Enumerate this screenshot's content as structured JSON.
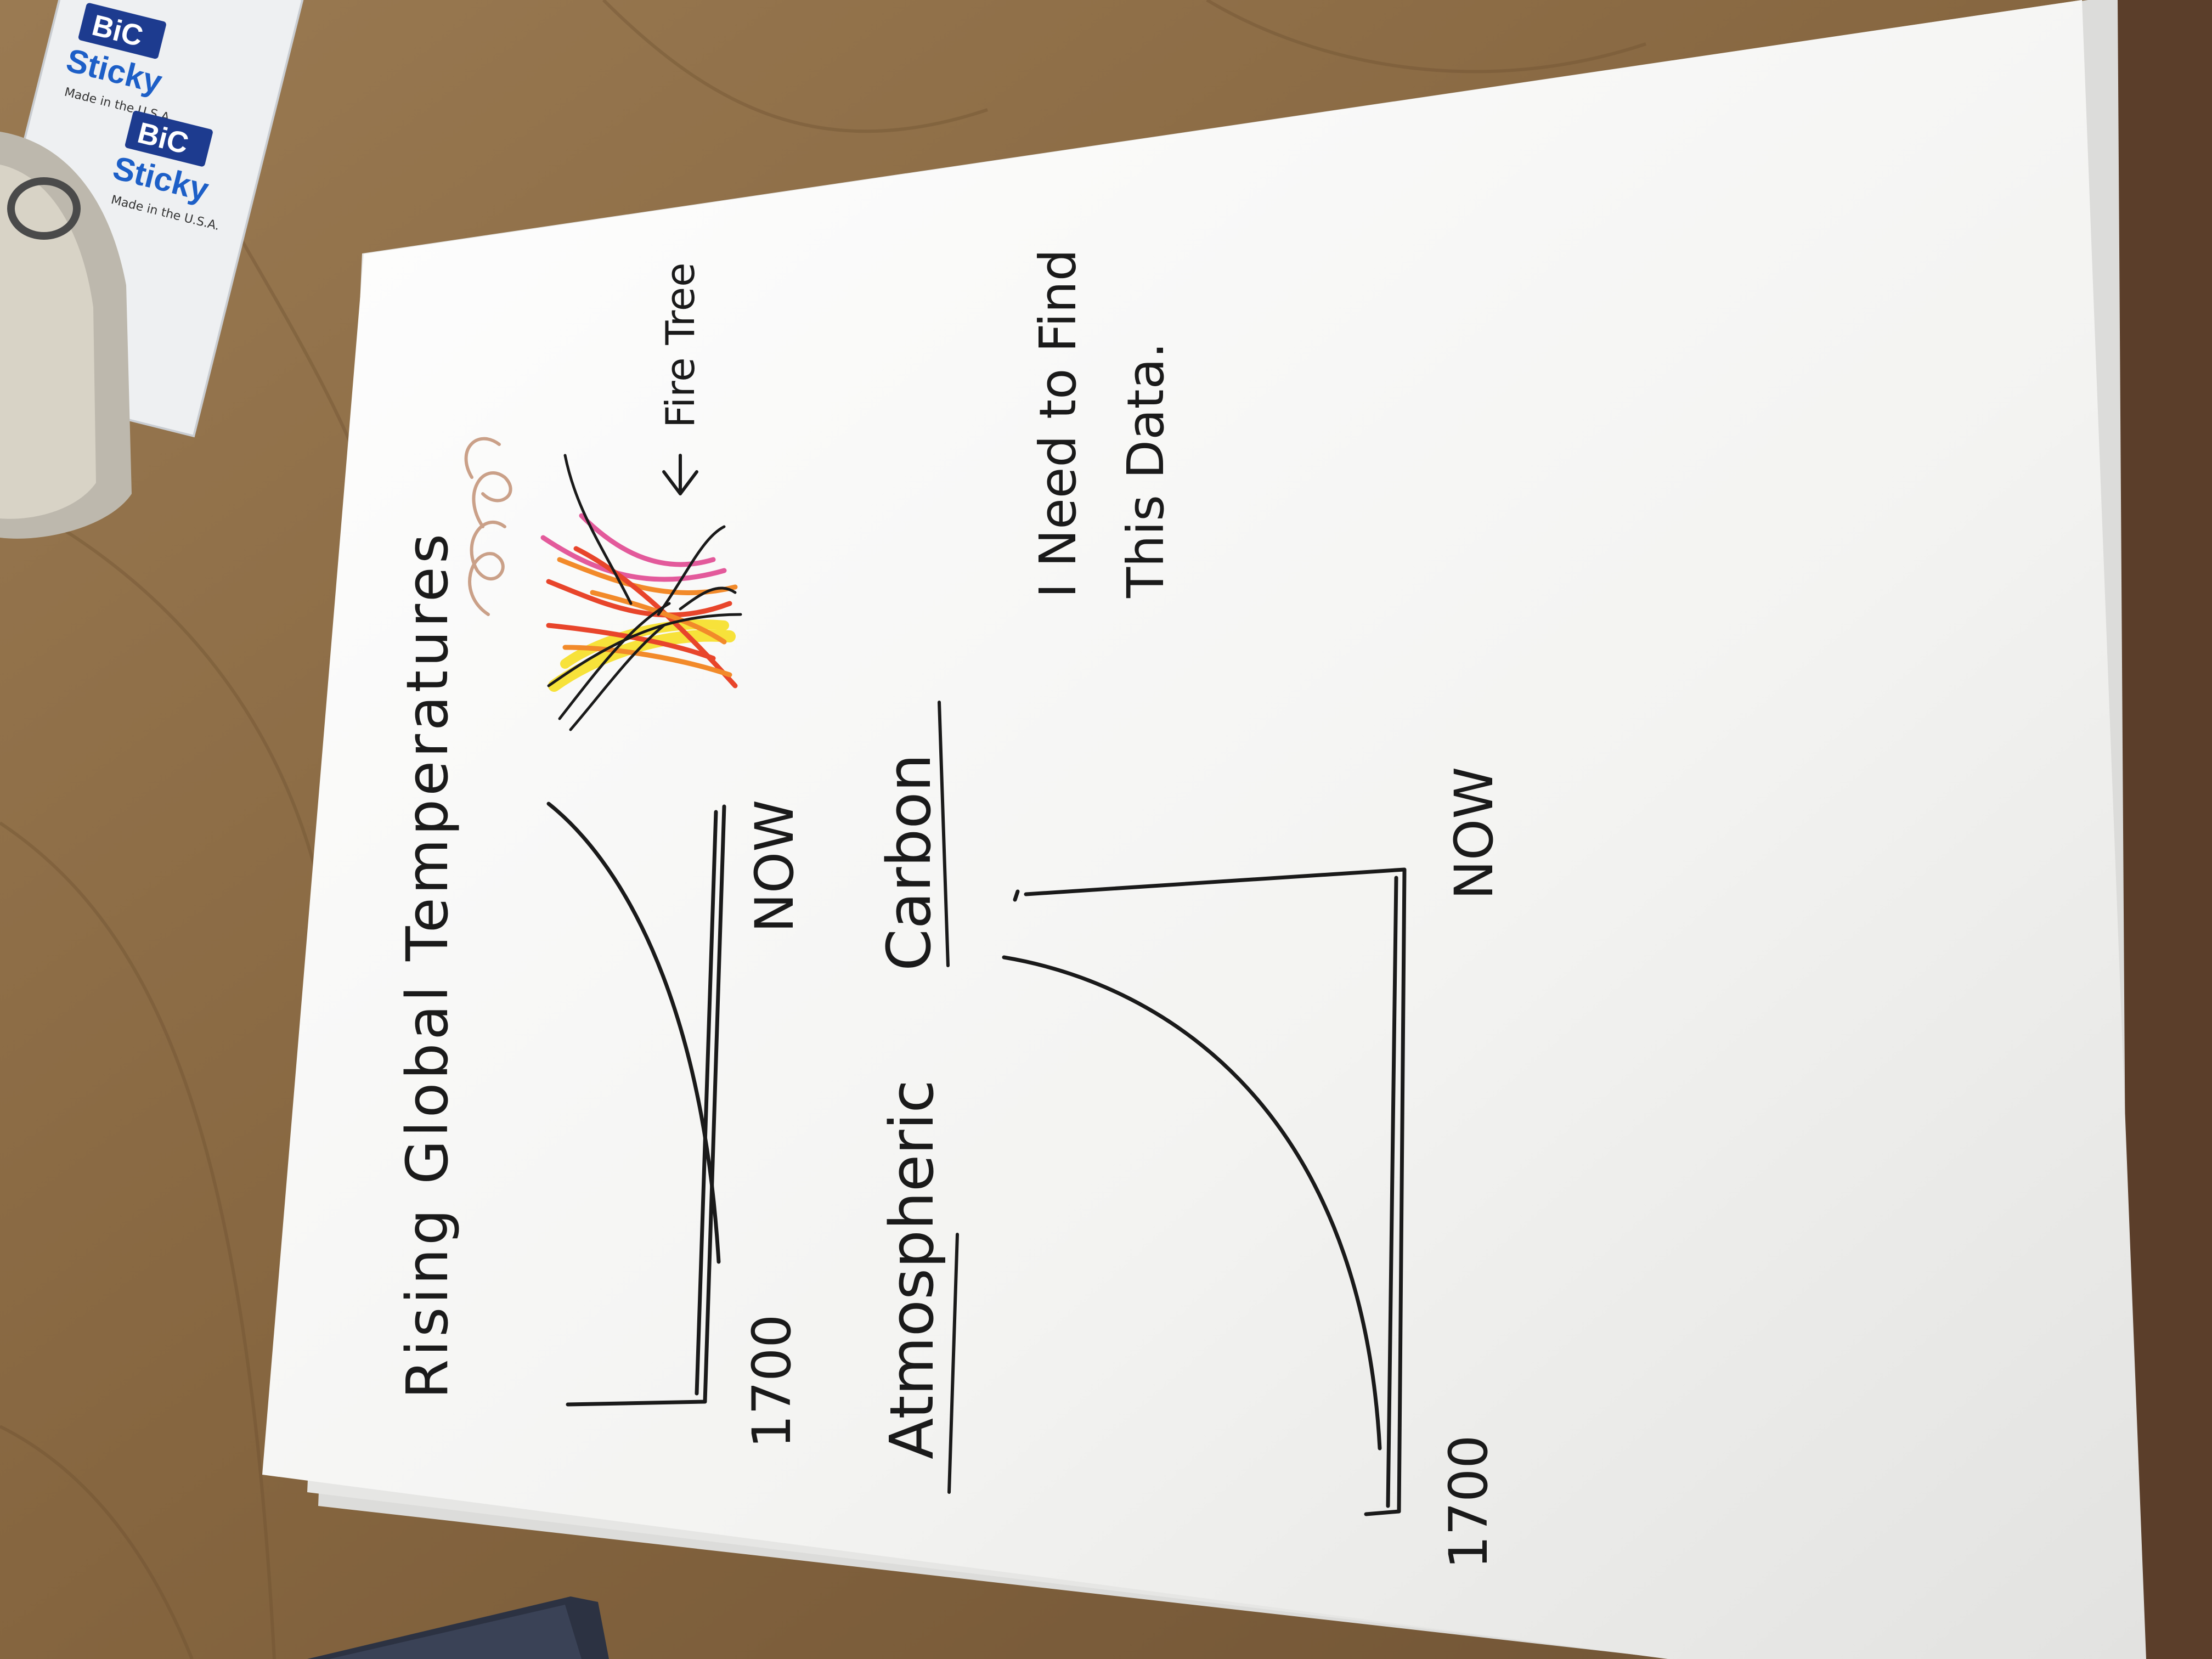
{
  "photo": {
    "sheet": {
      "title": "Rising Global Temperatures",
      "chart1": {
        "x_start": "1700",
        "x_end": "NOW"
      },
      "section2_title_part1": "Atmospheric",
      "section2_title_part2": "Carbon",
      "chart2": {
        "x_start": "1700",
        "x_end": "NOW"
      },
      "fire_label": "Fire Tree",
      "note_line1": "I Need to Find",
      "note_line2": "This Data."
    },
    "sticky_notes": {
      "brand": "BiC",
      "product": "Sticky",
      "made_in": "Made in the U.S.A."
    },
    "colors": {
      "table": "#8a6a45",
      "paper": "#f7f7f5",
      "ink": "#1a1a1a",
      "fire_red": "#e8452b",
      "fire_orange": "#f28a2a",
      "fire_yellow": "#f7e23a",
      "fire_pink": "#e35a9b"
    }
  }
}
